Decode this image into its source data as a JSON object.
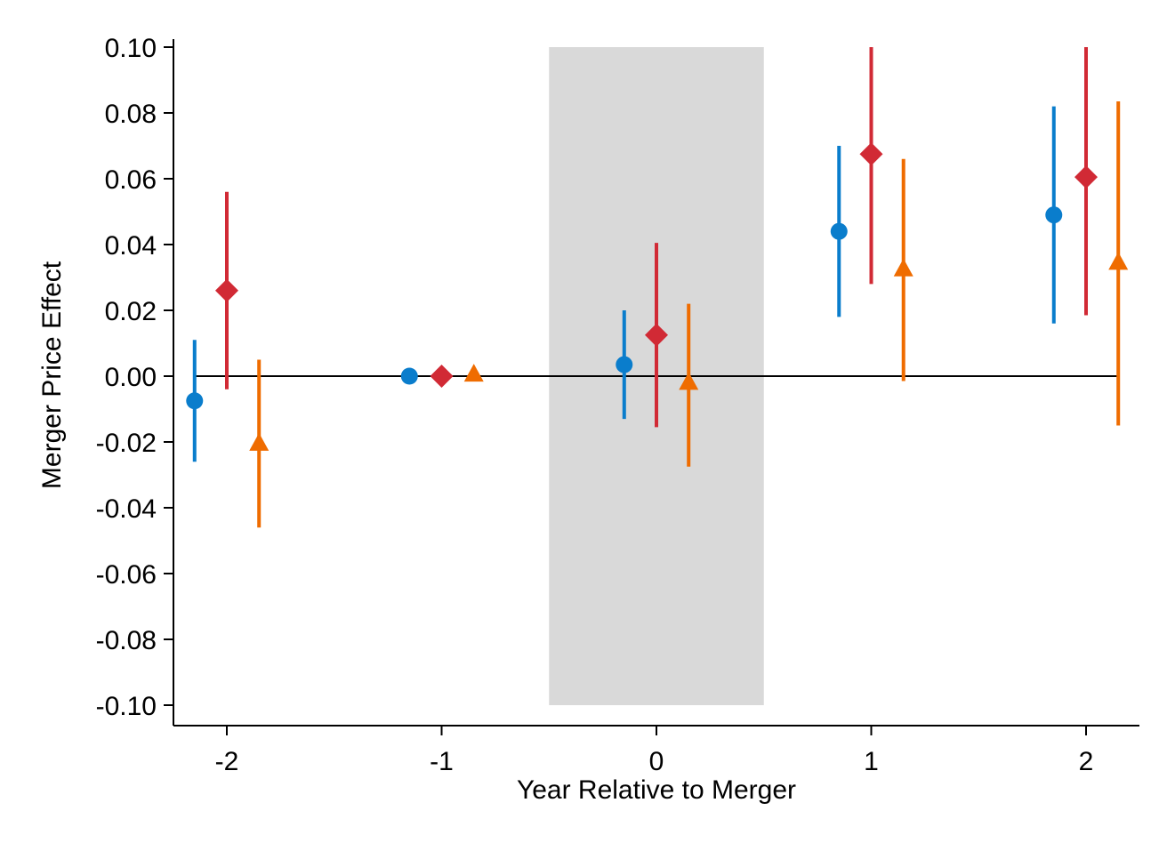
{
  "chart_data": {
    "type": "scatter",
    "xlabel": "Year Relative to Merger",
    "ylabel": "Merger Price Effect",
    "xlim": [
      -2.25,
      2.25
    ],
    "ylim": [
      -0.1,
      0.1
    ],
    "xticks": [
      -2,
      -1,
      0,
      1,
      2
    ],
    "xtick_labels": [
      "-2",
      "-1",
      "0",
      "1",
      "2"
    ],
    "yticks": [
      0.1,
      0.08,
      0.06,
      0.04,
      0.02,
      0.0,
      -0.02,
      -0.04,
      -0.06,
      -0.08,
      -0.1
    ],
    "ytick_labels": [
      "0.10",
      "0.08",
      "0.06",
      "0.04",
      "0.02",
      "0.00",
      "-0.02",
      "-0.04",
      "-0.06",
      "-0.08",
      "-0.10"
    ],
    "shaded_region": {
      "x": [
        -0.5,
        0.5
      ],
      "y": [
        -0.1,
        0.1
      ],
      "color": "#d9d9d9"
    },
    "reference_line": {
      "y": 0.0,
      "x": [
        -2.15,
        2.15
      ],
      "color": "#000000"
    },
    "grid": false,
    "series": [
      {
        "marker": "circle",
        "color": "#0a7dcc",
        "points": [
          {
            "x": -2.15,
            "y": -0.0075,
            "lo": -0.026,
            "hi": 0.011
          },
          {
            "x": -1.15,
            "y": 0.0,
            "lo": null,
            "hi": null
          },
          {
            "x": -0.15,
            "y": 0.0035,
            "lo": -0.013,
            "hi": 0.02
          },
          {
            "x": 0.85,
            "y": 0.044,
            "lo": 0.018,
            "hi": 0.07
          },
          {
            "x": 1.85,
            "y": 0.049,
            "lo": 0.016,
            "hi": 0.082
          }
        ]
      },
      {
        "marker": "diamond",
        "color": "#d12a35",
        "points": [
          {
            "x": -2.0,
            "y": 0.026,
            "lo": -0.004,
            "hi": 0.056
          },
          {
            "x": -1.0,
            "y": 0.0,
            "lo": null,
            "hi": null
          },
          {
            "x": 0.0,
            "y": 0.0125,
            "lo": -0.0155,
            "hi": 0.0405
          },
          {
            "x": 1.0,
            "y": 0.0675,
            "lo": 0.028,
            "hi": 0.1
          },
          {
            "x": 2.0,
            "y": 0.0605,
            "lo": 0.0185,
            "hi": 0.1
          }
        ]
      },
      {
        "marker": "triangle",
        "color": "#ef6c00",
        "points": [
          {
            "x": -1.85,
            "y": -0.0205,
            "lo": -0.046,
            "hi": 0.005
          },
          {
            "x": -0.85,
            "y": 0.0005,
            "lo": null,
            "hi": null
          },
          {
            "x": 0.15,
            "y": -0.002,
            "lo": -0.0275,
            "hi": 0.022
          },
          {
            "x": 1.15,
            "y": 0.0325,
            "lo": -0.0015,
            "hi": 0.066
          },
          {
            "x": 2.15,
            "y": 0.0345,
            "lo": -0.015,
            "hi": 0.0835
          }
        ]
      }
    ]
  }
}
